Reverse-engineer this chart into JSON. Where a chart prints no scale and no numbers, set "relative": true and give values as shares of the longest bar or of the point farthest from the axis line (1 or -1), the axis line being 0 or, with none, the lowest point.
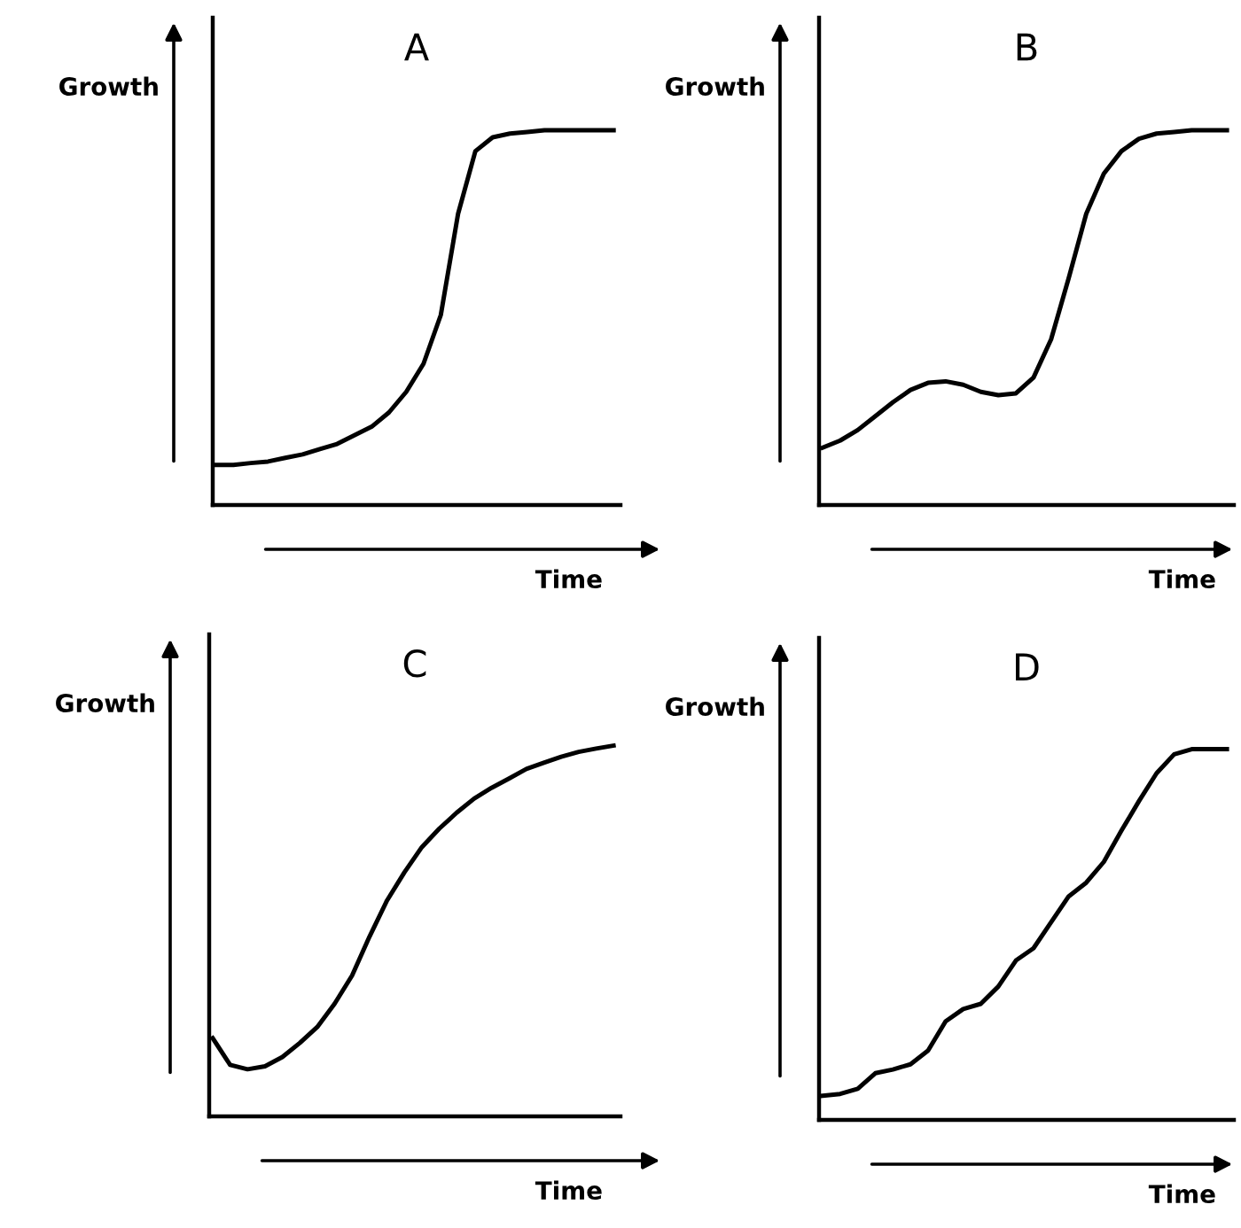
{
  "chart_data": [
    {
      "type": "line",
      "title": "A",
      "xlabel": "Time",
      "ylabel": "Growth",
      "relative": true,
      "color": "#000000",
      "categories": [
        null,
        null,
        null,
        null,
        null,
        null,
        null,
        null,
        null,
        null,
        null,
        null,
        null,
        null,
        null,
        null,
        null,
        null,
        null,
        null,
        null,
        null,
        null,
        null
      ],
      "values": [
        0.107,
        0.107,
        0.112,
        0.116,
        0.126,
        0.135,
        0.149,
        0.163,
        0.186,
        0.209,
        0.247,
        0.302,
        0.377,
        0.507,
        0.777,
        0.944,
        0.981,
        0.991,
        0.995,
        1,
        1,
        1,
        1,
        1
      ]
    },
    {
      "type": "line",
      "title": "B",
      "xlabel": "Time",
      "ylabel": "Growth",
      "relative": true,
      "color": "#000000",
      "categories": [
        null,
        null,
        null,
        null,
        null,
        null,
        null,
        null,
        null,
        null,
        null,
        null,
        null,
        null,
        null,
        null,
        null,
        null,
        null,
        null,
        null,
        null,
        null,
        null
      ],
      "values": [
        0.153,
        0.172,
        0.2,
        0.237,
        0.274,
        0.307,
        0.326,
        0.33,
        0.321,
        0.302,
        0.293,
        0.298,
        0.34,
        0.442,
        0.605,
        0.777,
        0.884,
        0.944,
        0.977,
        0.991,
        0.995,
        1,
        1,
        1
      ]
    },
    {
      "type": "line",
      "title": "C",
      "xlabel": "Time",
      "ylabel": "Growth",
      "relative": true,
      "color": "#000000",
      "categories": [
        null,
        null,
        null,
        null,
        null,
        null,
        null,
        null,
        null,
        null,
        null,
        null,
        null,
        null,
        null,
        null,
        null,
        null,
        null,
        null,
        null,
        null,
        null,
        null
      ],
      "values": [
        0.211,
        0.139,
        0.127,
        0.135,
        0.16,
        0.198,
        0.241,
        0.304,
        0.38,
        0.485,
        0.582,
        0.658,
        0.726,
        0.776,
        0.819,
        0.857,
        0.886,
        0.911,
        0.937,
        0.954,
        0.97,
        0.983,
        0.992,
        1
      ]
    },
    {
      "type": "line",
      "title": "D",
      "xlabel": "Time",
      "ylabel": "Growth",
      "relative": true,
      "color": "#000000",
      "categories": [
        null,
        null,
        null,
        null,
        null,
        null,
        null,
        null,
        null,
        null,
        null,
        null,
        null,
        null,
        null,
        null,
        null,
        null,
        null,
        null,
        null,
        null,
        null,
        null
      ],
      "values": [
        0.065,
        0.07,
        0.084,
        0.126,
        0.136,
        0.15,
        0.187,
        0.266,
        0.299,
        0.313,
        0.36,
        0.43,
        0.463,
        0.533,
        0.603,
        0.64,
        0.696,
        0.78,
        0.86,
        0.935,
        0.986,
        1,
        1,
        1
      ]
    }
  ]
}
